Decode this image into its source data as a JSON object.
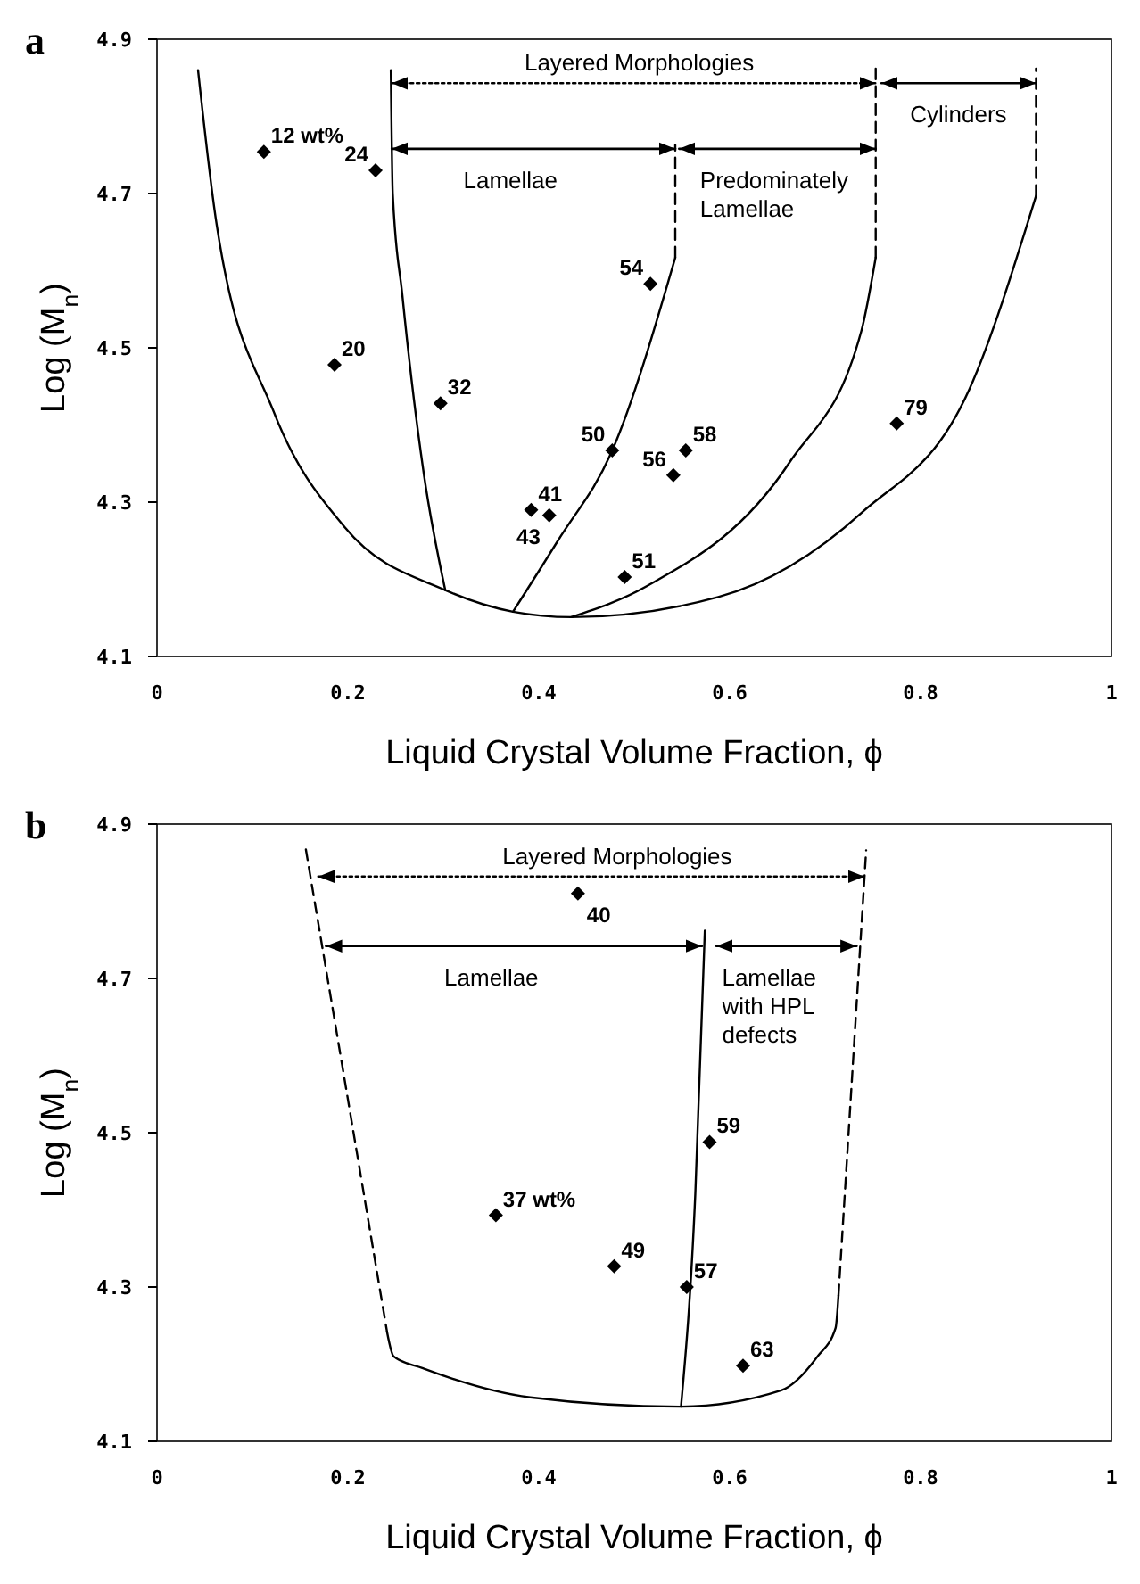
{
  "chart_data": [
    {
      "type": "scatter",
      "title": "a",
      "xlabel": "Liquid Crystal Volume Fraction, ϕ",
      "ylabel": "Log (M$_{n}$)",
      "xlim": [
        0,
        1
      ],
      "ylim": [
        4.1,
        4.9
      ],
      "xticks": [
        0,
        0.2,
        0.4,
        0.6,
        0.8,
        1
      ],
      "yticks": [
        4.1,
        4.3,
        4.5,
        4.7,
        4.9
      ],
      "series": [
        {
          "color": "#000000",
          "marker": "diamond",
          "x": [
            0.112,
            0.229,
            0.186,
            0.297,
            0.517,
            0.477,
            0.554,
            0.541,
            0.775,
            0.392,
            0.411,
            0.49
          ],
          "values": [
            4.754,
            4.73,
            4.478,
            4.428,
            4.583,
            4.367,
            4.367,
            4.335,
            4.402,
            4.29,
            4.283,
            4.203
          ]
        },
        {
          "type": "line",
          "color": "#000000",
          "line_style": "solid",
          "x": [
            0.043,
            0.062,
            0.122,
            0.197,
            0.302,
            0.373,
            0.434,
            0.588,
            0.738,
            0.851,
            0.921
          ],
          "values": [
            4.86,
            4.664,
            4.418,
            4.267,
            4.186,
            4.158,
            4.151,
            4.177,
            4.286,
            4.446,
            4.697
          ]
        },
        {
          "type": "line",
          "color": "#000000",
          "line_style": "dashed",
          "x": [
            0.921,
            0.921
          ],
          "values": [
            4.697,
            4.862
          ]
        },
        {
          "type": "line",
          "color": "#000000",
          "line_style": "solid",
          "x": [
            0.245,
            0.247,
            0.257,
            0.28,
            0.302
          ],
          "values": [
            4.86,
            4.7,
            4.569,
            4.333,
            4.186
          ]
        },
        {
          "type": "line",
          "color": "#000000",
          "line_style": "solid",
          "x": [
            0.373,
            0.42,
            0.477,
            0.543
          ],
          "values": [
            4.158,
            4.25,
            4.367,
            4.617
          ]
        },
        {
          "type": "line",
          "color": "#000000",
          "line_style": "dashed",
          "x": [
            0.543,
            0.543
          ],
          "values": [
            4.617,
            4.763
          ]
        },
        {
          "type": "line",
          "color": "#000000",
          "line_style": "solid",
          "x": [
            0.434,
            0.513,
            0.663,
            0.738,
            0.753
          ],
          "values": [
            4.151,
            4.191,
            4.352,
            4.522,
            4.617
          ]
        },
        {
          "type": "line",
          "color": "#000000",
          "line_style": "dashed",
          "x": [
            0.753,
            0.753
          ],
          "values": [
            4.617,
            4.862
          ]
        },
        {
          "type": "line",
          "color": "#000000",
          "line_style": "dotted",
          "x": [
            0.246,
            0.753
          ],
          "values": [
            4.843,
            4.843
          ]
        },
        {
          "type": "line",
          "color": "#000000",
          "line_style": "solid",
          "x": [
            0.759,
            0.921
          ],
          "values": [
            4.843,
            4.843
          ]
        },
        {
          "type": "line",
          "color": "#000000",
          "line_style": "solid",
          "x": [
            0.246,
            0.543
          ],
          "values": [
            4.758,
            4.758
          ]
        },
        {
          "type": "line",
          "color": "#000000",
          "line_style": "solid",
          "x": [
            0.547,
            0.753
          ],
          "values": [
            4.758,
            4.758
          ]
        }
      ],
      "annotations": [
        {
          "text": "Layered Morphologies",
          "x": 0.385,
          "y": 4.843
        },
        {
          "text": "Cylinders",
          "x": 0.789,
          "y": 4.843
        },
        {
          "text": "Lamellae",
          "x": 0.321,
          "y": 4.758
        },
        {
          "text": "Predominately Lamellae",
          "x": 0.569,
          "y": 4.758
        },
        {
          "text": "12 wt%",
          "x": 0.112,
          "y": 4.754
        },
        {
          "text": "24",
          "x": 0.229,
          "y": 4.73
        },
        {
          "text": "20",
          "x": 0.186,
          "y": 4.478
        },
        {
          "text": "32",
          "x": 0.297,
          "y": 4.428
        },
        {
          "text": "54",
          "x": 0.517,
          "y": 4.583
        },
        {
          "text": "50",
          "x": 0.477,
          "y": 4.367
        },
        {
          "text": "58",
          "x": 0.554,
          "y": 4.367
        },
        {
          "text": "56",
          "x": 0.541,
          "y": 4.335
        },
        {
          "text": "79",
          "x": 0.775,
          "y": 4.402
        },
        {
          "text": "41",
          "x": 0.392,
          "y": 4.29
        },
        {
          "text": "43",
          "x": 0.411,
          "y": 4.283
        },
        {
          "text": "51",
          "x": 0.49,
          "y": 4.203
        }
      ]
    },
    {
      "type": "scatter",
      "title": "b",
      "xlabel": "Liquid Crystal Volume Fraction, ϕ",
      "ylabel": "Log (M$_{n}$)",
      "xlim": [
        0,
        1
      ],
      "ylim": [
        4.1,
        4.9
      ],
      "xticks": [
        0,
        0.2,
        0.4,
        0.6,
        0.8,
        1
      ],
      "yticks": [
        4.1,
        4.3,
        4.5,
        4.7,
        4.9
      ],
      "series": [
        {
          "color": "#000000",
          "marker": "diamond",
          "x": [
            0.441,
            0.579,
            0.355,
            0.479,
            0.555,
            0.614
          ],
          "values": [
            4.81,
            4.488,
            4.393,
            4.327,
            4.3,
            4.198
          ]
        },
        {
          "type": "line",
          "color": "#000000",
          "line_style": "dashed",
          "x": [
            0.156,
            0.241
          ],
          "values": [
            4.867,
            4.242
          ]
        },
        {
          "type": "line",
          "color": "#000000",
          "line_style": "solid",
          "x": [
            0.241,
            0.248,
            0.278,
            0.391,
            0.549,
            0.654,
            0.692,
            0.711,
            0.714
          ],
          "values": [
            4.242,
            4.21,
            4.195,
            4.157,
            4.145,
            4.166,
            4.21,
            4.247,
            4.289
          ]
        },
        {
          "type": "line",
          "color": "#000000",
          "line_style": "dashed",
          "x": [
            0.714,
            0.743
          ],
          "values": [
            4.289,
            4.866
          ]
        },
        {
          "type": "line",
          "color": "#000000",
          "line_style": "solid",
          "x": [
            0.549,
            0.564,
            0.574
          ],
          "values": [
            4.145,
            4.421,
            4.762
          ]
        },
        {
          "type": "line",
          "color": "#000000",
          "line_style": "dotted",
          "x": [
            0.169,
            0.741
          ],
          "values": [
            4.832,
            4.832
          ]
        },
        {
          "type": "line",
          "color": "#000000",
          "line_style": "solid",
          "x": [
            0.177,
            0.571
          ],
          "values": [
            4.742,
            4.742
          ]
        },
        {
          "type": "line",
          "color": "#000000",
          "line_style": "solid",
          "x": [
            0.586,
            0.733
          ],
          "values": [
            4.742,
            4.742
          ]
        }
      ],
      "annotations": [
        {
          "text": "Layered Morphologies",
          "x": 0.362,
          "y": 4.832
        },
        {
          "text": "Lamellae",
          "x": 0.301,
          "y": 4.742
        },
        {
          "text": "Lamellae with HPL defects",
          "x": 0.592,
          "y": 4.742
        },
        {
          "text": "40",
          "x": 0.441,
          "y": 4.81
        },
        {
          "text": "59",
          "x": 0.579,
          "y": 4.488
        },
        {
          "text": "37 wt%",
          "x": 0.355,
          "y": 4.393
        },
        {
          "text": "49",
          "x": 0.479,
          "y": 4.327
        },
        {
          "text": "57",
          "x": 0.555,
          "y": 4.3
        },
        {
          "text": "63",
          "x": 0.614,
          "y": 4.198
        }
      ]
    }
  ]
}
